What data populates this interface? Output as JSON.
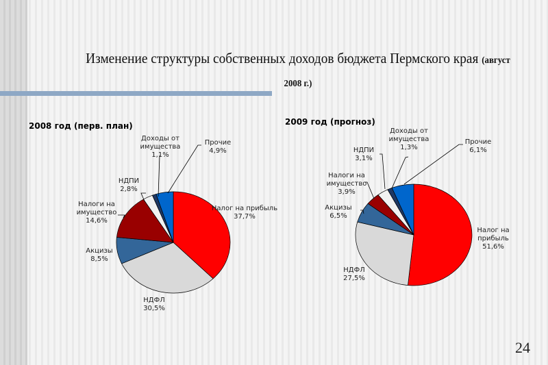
{
  "slide": {
    "title_main": "Изменение структуры собственных доходов бюджета Пермского края",
    "title_sub": "(август 2008 г.)",
    "page_number": "24"
  },
  "chart_data": [
    {
      "type": "pie",
      "title": "2008 год (перв. план)",
      "slices": [
        {
          "name": "Налог на прибыль",
          "value": 37.7,
          "label": "37,7%",
          "color": "#ff0000"
        },
        {
          "name": "НДФЛ",
          "value": 30.5,
          "label": "30,5%",
          "color": "#d9d9d9"
        },
        {
          "name": "Акцизы",
          "value": 8.5,
          "label": "8,5%",
          "color": "#336699"
        },
        {
          "name": "Налоги на имущество",
          "value": 14.6,
          "label": "14,6%",
          "color": "#990000"
        },
        {
          "name": "НДПИ",
          "value": 2.8,
          "label": "2,8%",
          "color": "#f2f2f2"
        },
        {
          "name": "Доходы от имущества",
          "value": 1.1,
          "label": "1,1%",
          "color": "#1f3864"
        },
        {
          "name": "Прочие",
          "value": 4.9,
          "label": "4,9%",
          "color": "#0066cc"
        }
      ]
    },
    {
      "type": "pie",
      "title": "2009 год (прогноз)",
      "slices": [
        {
          "name": "Налог на прибыль",
          "value": 51.6,
          "label": "51,6%",
          "color": "#ff0000"
        },
        {
          "name": "НДФЛ",
          "value": 27.5,
          "label": "27,5%",
          "color": "#d9d9d9"
        },
        {
          "name": "Акцизы",
          "value": 6.5,
          "label": "6,5%",
          "color": "#336699"
        },
        {
          "name": "Налоги на имущество",
          "value": 3.9,
          "label": "3,9%",
          "color": "#990000"
        },
        {
          "name": "НДПИ",
          "value": 3.1,
          "label": "3,1%",
          "color": "#f2f2f2"
        },
        {
          "name": "Доходы от имущества",
          "value": 1.3,
          "label": "1,3%",
          "color": "#1f3864"
        },
        {
          "name": "Прочие",
          "value": 6.1,
          "label": "6,1%",
          "color": "#0066cc"
        }
      ]
    }
  ]
}
